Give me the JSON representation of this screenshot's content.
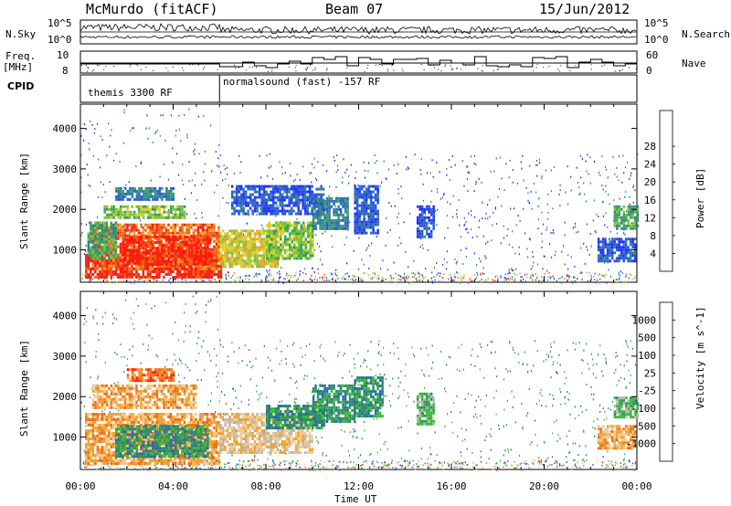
{
  "header": {
    "station": "McMurdo (fitACF)",
    "beam": "Beam 07",
    "date": "15/Jun/2012"
  },
  "side_labels": {
    "nsky": "N.Sky",
    "freq": "Freq.",
    "freq_unit": "[MHz]",
    "cpid": "CPID",
    "nsearch": "N.Search",
    "nave": "Nave"
  },
  "small_ticks": {
    "nsky_top": "10^5",
    "nsky_bottom": "10^0",
    "freq_top": "10",
    "freq_bottom": "8",
    "nave_top": "60",
    "nave_bottom": "0"
  },
  "cpid_segments": [
    {
      "label": "themis 3300 RF",
      "start_hour": 0,
      "end_hour": 6
    },
    {
      "label": "normalsound (fast) -157 RF",
      "start_hour": 6,
      "end_hour": 24
    }
  ],
  "chart_data": [
    {
      "type": "heatmap",
      "ylabel": "Slant Range [km]",
      "xlabel": "Time UT",
      "x_ticks": [
        "00:00",
        "04:00",
        "08:00",
        "12:00",
        "16:00",
        "20:00",
        "00:00"
      ],
      "xlim_hours": [
        0,
        24
      ],
      "y_ticks": [
        "1000",
        "2000",
        "3000",
        "4000"
      ],
      "ylim": [
        200,
        4600
      ],
      "colorbar": {
        "label": "Power [dB]",
        "ticks": [
          "4",
          "8",
          "12",
          "16",
          "20",
          "24",
          "28"
        ],
        "colors": [
          "#1f2eff",
          "#2a5bd4",
          "#2f7f9a",
          "#3aa05a",
          "#7cc23a",
          "#d8d02a",
          "#f0a020",
          "#f06010",
          "#ff1a10"
        ]
      },
      "regions": [
        {
          "t0": 0.2,
          "t1": 6.1,
          "r0": 300,
          "r1": 900,
          "level": 8
        },
        {
          "t0": 0.5,
          "t1": 6.0,
          "r0": 550,
          "r1": 1650,
          "level": 7
        },
        {
          "t0": 1.8,
          "t1": 5.6,
          "r0": 650,
          "r1": 1350,
          "level": 8
        },
        {
          "t0": 0.3,
          "t1": 1.5,
          "r0": 800,
          "r1": 1700,
          "level": 3
        },
        {
          "t0": 1.0,
          "t1": 4.5,
          "r0": 1800,
          "r1": 2100,
          "level": 4
        },
        {
          "t0": 1.5,
          "t1": 4.0,
          "r0": 2250,
          "r1": 2550,
          "level": 2
        },
        {
          "t0": 6.0,
          "t1": 8.5,
          "r0": 600,
          "r1": 1500,
          "level": 5
        },
        {
          "t0": 8.0,
          "t1": 10.0,
          "r0": 800,
          "r1": 1700,
          "level": 4
        },
        {
          "t0": 6.5,
          "t1": 10.5,
          "r0": 1900,
          "r1": 2600,
          "level": 1
        },
        {
          "t0": 10.0,
          "t1": 11.5,
          "r0": 1500,
          "r1": 2300,
          "level": 2
        },
        {
          "t0": 11.8,
          "t1": 12.8,
          "r0": 1400,
          "r1": 2600,
          "level": 1
        },
        {
          "t0": 14.5,
          "t1": 15.2,
          "r0": 1300,
          "r1": 2100,
          "level": 1
        },
        {
          "t0": 22.3,
          "t1": 23.9,
          "r0": 700,
          "r1": 1300,
          "level": 1
        },
        {
          "t0": 23.0,
          "t1": 24.0,
          "r0": 1500,
          "r1": 2100,
          "level": 3
        }
      ]
    },
    {
      "type": "heatmap",
      "ylabel": "Slant Range [km]",
      "xlabel": "Time UT",
      "x_ticks": [
        "00:00",
        "04:00",
        "08:00",
        "12:00",
        "16:00",
        "20:00",
        "00:00"
      ],
      "xlim_hours": [
        0,
        24
      ],
      "y_ticks": [
        "1000",
        "2000",
        "3000",
        "4000"
      ],
      "ylim": [
        200,
        4600
      ],
      "colorbar": {
        "label": "Velocity [m s^-1]",
        "ticks": [
          "1000",
          "500",
          "100",
          "25",
          "-25",
          "-100",
          "-500",
          "-1000"
        ],
        "colors": [
          "#1f3cd6",
          "#2a6aa8",
          "#2f8f5e",
          "#3ab83a",
          "#b8b8b8",
          "#f0c890",
          "#f0a030",
          "#f07010",
          "#ff1a10"
        ]
      },
      "regions": [
        {
          "t0": 0.2,
          "t1": 6.0,
          "r0": 350,
          "r1": 1600,
          "level": 6
        },
        {
          "t0": 1.5,
          "t1": 5.5,
          "r0": 500,
          "r1": 1300,
          "level": 2
        },
        {
          "t0": 0.5,
          "t1": 5.0,
          "r0": 1700,
          "r1": 2300,
          "level": 6
        },
        {
          "t0": 2.0,
          "t1": 4.0,
          "r0": 2400,
          "r1": 2700,
          "level": 7
        },
        {
          "t0": 6.0,
          "t1": 10.0,
          "r0": 600,
          "r1": 1600,
          "level": 5
        },
        {
          "t0": 8.0,
          "t1": 10.5,
          "r0": 1200,
          "r1": 1800,
          "level": 2
        },
        {
          "t0": 10.0,
          "t1": 11.8,
          "r0": 1400,
          "r1": 2300,
          "level": 2
        },
        {
          "t0": 11.8,
          "t1": 13.0,
          "r0": 1500,
          "r1": 2500,
          "level": 2
        },
        {
          "t0": 14.5,
          "t1": 15.2,
          "r0": 1300,
          "r1": 2100,
          "level": 3
        },
        {
          "t0": 22.3,
          "t1": 23.9,
          "r0": 700,
          "r1": 1300,
          "level": 6
        },
        {
          "t0": 23.0,
          "t1": 24.0,
          "r0": 1500,
          "r1": 2000,
          "level": 3
        }
      ]
    }
  ]
}
